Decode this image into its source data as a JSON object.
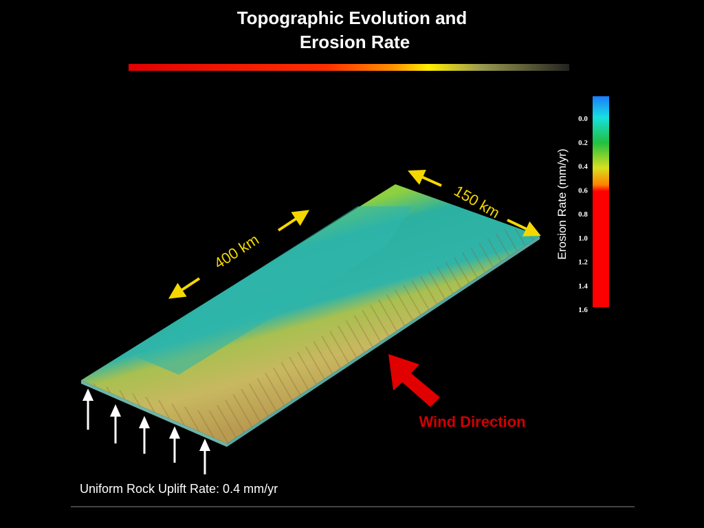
{
  "header": {
    "title": [
      "Topographic Evolution and",
      "Erosion Rate"
    ]
  },
  "figure": {
    "length_label": "400 km",
    "width_label": "150 km",
    "wind_label": "Wind Direction",
    "uplift_label": "Uniform Rock Uplift Rate: 0.4 mm/yr"
  },
  "colorbar": {
    "label": "Erosion Rate (mm/yr)",
    "ticks": [
      "0.0",
      "0.2",
      "0.4",
      "0.6",
      "0.8",
      "1.0",
      "1.2",
      "1.4",
      "1.6"
    ]
  }
}
